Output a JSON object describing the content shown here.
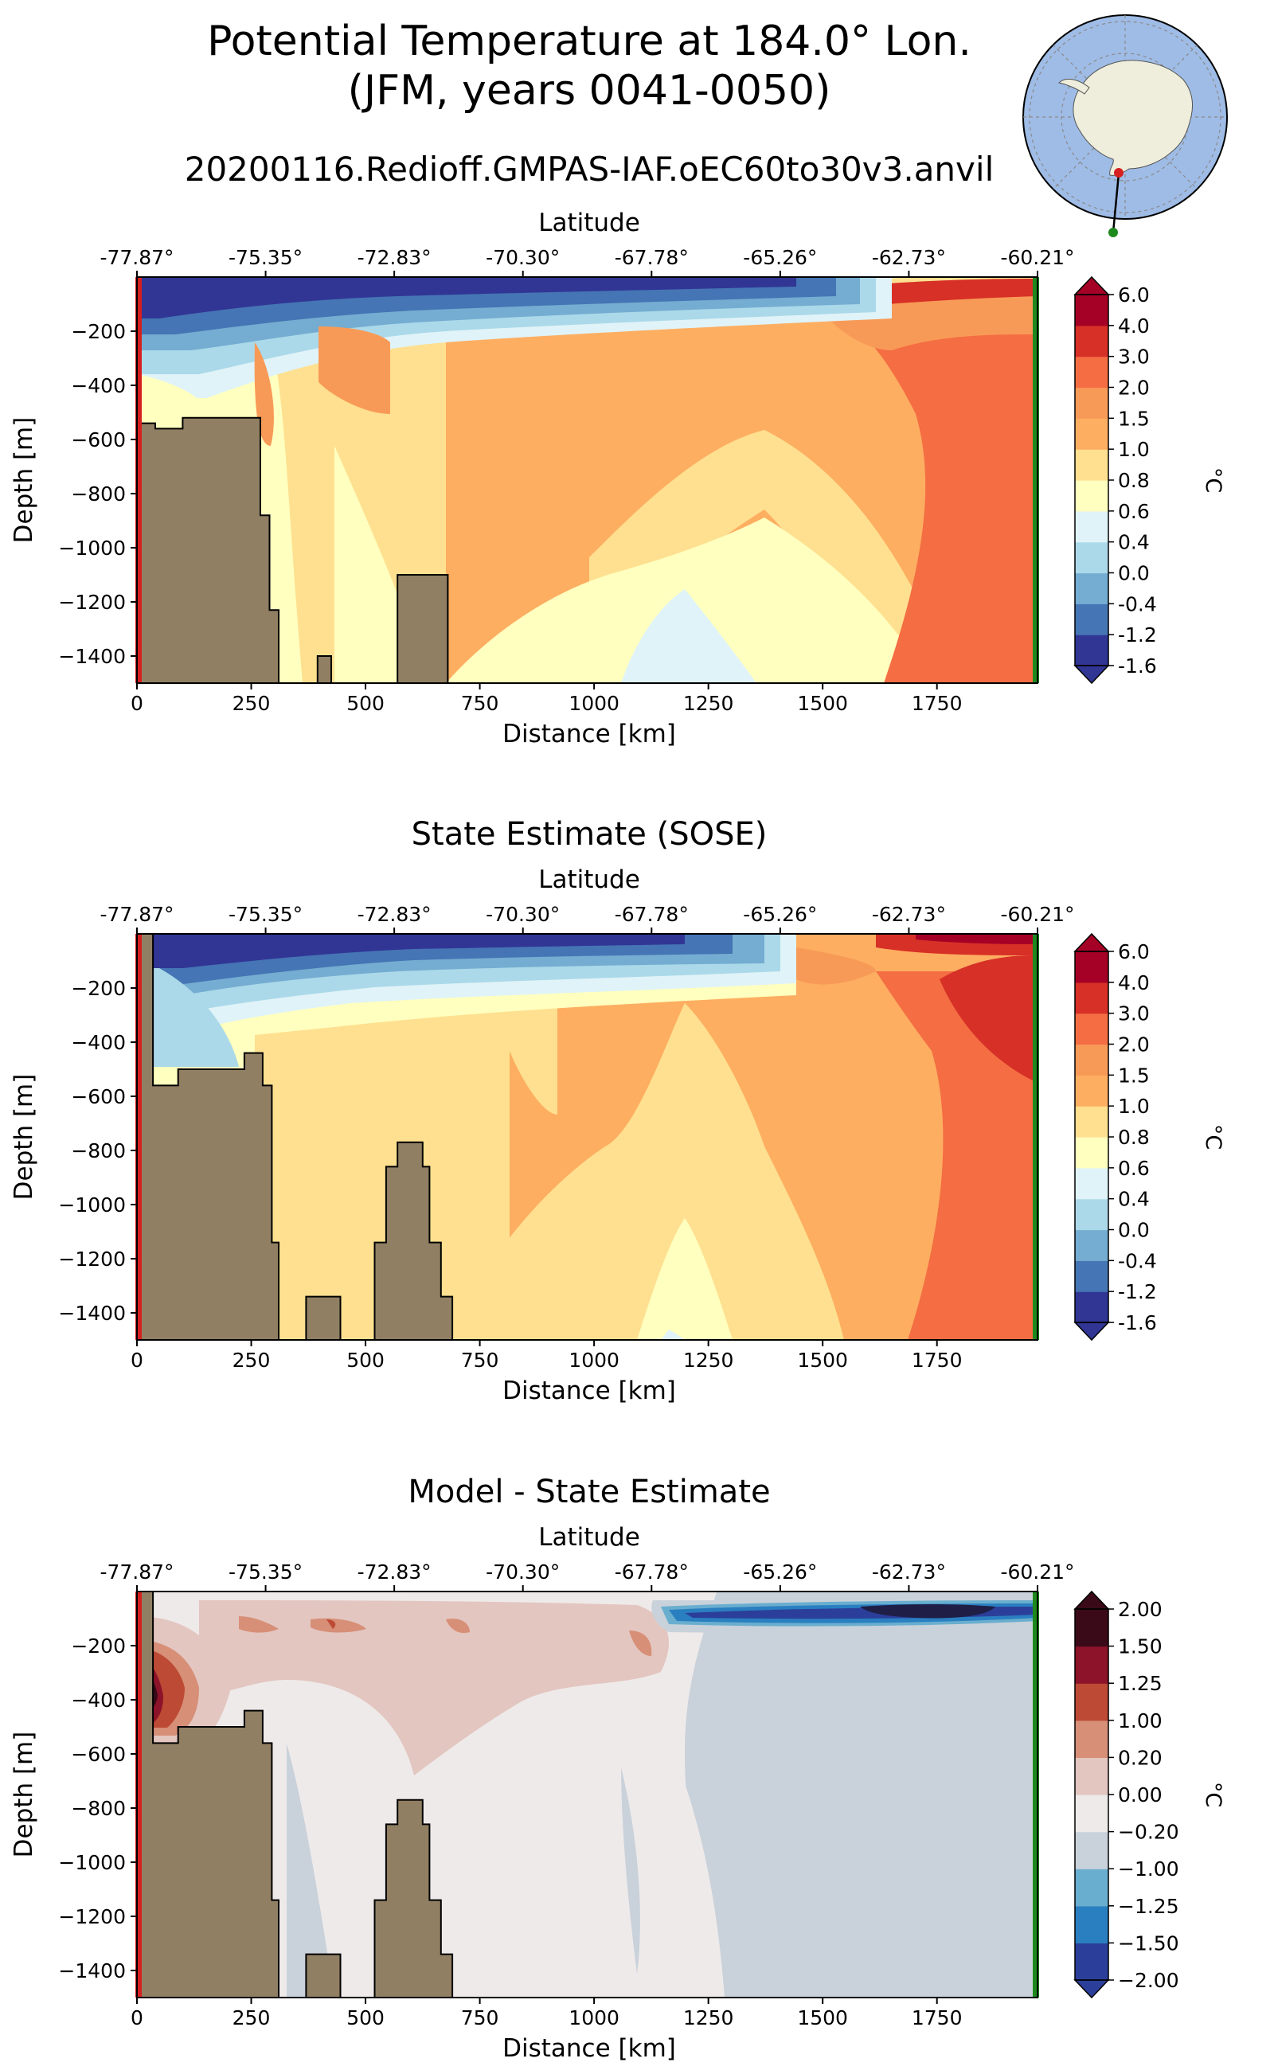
{
  "figure": {
    "title_line1": "Potential Temperature at 184.0° Lon.",
    "title_line2": "(JFM, years 0041-0050)",
    "run_name": "20200116.Redioff.GMPAS-IAF.oEC60to30v3.anvil"
  },
  "colors": {
    "land": "#917f63",
    "ocean_globe": "#9fbce6",
    "antarctica": "#efeedc",
    "start_marker": "#d62020",
    "end_marker": "#1e8a1e"
  },
  "chart_data": [
    {
      "type": "heatmap",
      "title": "",
      "xlabel": "Distance [km]",
      "ylabel": "Depth [m]",
      "top_xlabel": "Latitude",
      "xlim": [
        0,
        1970
      ],
      "ylim": [
        -1500,
        0
      ],
      "x_ticks": [
        0,
        250,
        500,
        750,
        1000,
        1250,
        1500,
        1750
      ],
      "y_ticks": [
        -200,
        -400,
        -600,
        -800,
        -1000,
        -1200,
        -1400
      ],
      "lat_ticks": [
        "-77.87°",
        "-75.35°",
        "-72.83°",
        "-70.30°",
        "-67.78°",
        "-65.26°",
        "-62.73°",
        "-60.21°"
      ],
      "colorbar": {
        "label": "°C",
        "levels": [
          "-1.6",
          "-1.2",
          "-0.4",
          "0.0",
          "0.4",
          "0.6",
          "0.8",
          "1.0",
          "1.5",
          "2.0",
          "3.0",
          "4.0",
          "6.0"
        ],
        "colors": [
          "#313695",
          "#4575b4",
          "#74add1",
          "#abd9e9",
          "#e0f3f8",
          "#ffffbf",
          "#fee090",
          "#fdae61",
          "#f89a57",
          "#f46d43",
          "#d73027",
          "#a50026"
        ]
      },
      "bathymetry": [
        [
          0,
          -540
        ],
        [
          40,
          -540
        ],
        [
          40,
          -560
        ],
        [
          100,
          -560
        ],
        [
          100,
          -520
        ],
        [
          270,
          -520
        ],
        [
          270,
          -880
        ],
        [
          290,
          -880
        ],
        [
          290,
          -1230
        ],
        [
          310,
          -1230
        ],
        [
          310,
          -1500
        ],
        [
          395,
          -1500
        ],
        [
          395,
          -1400
        ],
        [
          425,
          -1400
        ],
        [
          425,
          -1500
        ],
        [
          570,
          -1500
        ],
        [
          570,
          -1100
        ],
        [
          680,
          -1100
        ],
        [
          680,
          -1500
        ]
      ]
    },
    {
      "type": "heatmap",
      "title": "State Estimate (SOSE)",
      "xlabel": "Distance [km]",
      "ylabel": "Depth [m]",
      "top_xlabel": "Latitude",
      "xlim": [
        0,
        1970
      ],
      "ylim": [
        -1500,
        0
      ],
      "x_ticks": [
        0,
        250,
        500,
        750,
        1000,
        1250,
        1500,
        1750
      ],
      "y_ticks": [
        -200,
        -400,
        -600,
        -800,
        -1000,
        -1200,
        -1400
      ],
      "lat_ticks": [
        "-77.87°",
        "-75.35°",
        "-72.83°",
        "-70.30°",
        "-67.78°",
        "-65.26°",
        "-62.73°",
        "-60.21°"
      ],
      "colorbar": {
        "label": "°C",
        "levels": [
          "-1.6",
          "-1.2",
          "-0.4",
          "0.0",
          "0.4",
          "0.6",
          "0.8",
          "1.0",
          "1.5",
          "2.0",
          "3.0",
          "4.0",
          "6.0"
        ],
        "colors": [
          "#313695",
          "#4575b4",
          "#74add1",
          "#abd9e9",
          "#e0f3f8",
          "#ffffbf",
          "#fee090",
          "#fdae61",
          "#f89a57",
          "#f46d43",
          "#d73027",
          "#a50026"
        ]
      },
      "bathymetry": [
        [
          0,
          0
        ],
        [
          35,
          0
        ],
        [
          35,
          -560
        ],
        [
          90,
          -560
        ],
        [
          90,
          -500
        ],
        [
          235,
          -500
        ],
        [
          235,
          -440
        ],
        [
          275,
          -440
        ],
        [
          275,
          -560
        ],
        [
          295,
          -560
        ],
        [
          295,
          -1140
        ],
        [
          310,
          -1140
        ],
        [
          310,
          -1500
        ],
        [
          370,
          -1500
        ],
        [
          370,
          -1340
        ],
        [
          445,
          -1340
        ],
        [
          445,
          -1500
        ],
        [
          520,
          -1500
        ],
        [
          520,
          -1140
        ],
        [
          545,
          -1140
        ],
        [
          545,
          -860
        ],
        [
          570,
          -860
        ],
        [
          570,
          -770
        ],
        [
          625,
          -770
        ],
        [
          625,
          -860
        ],
        [
          640,
          -860
        ],
        [
          640,
          -1140
        ],
        [
          665,
          -1140
        ],
        [
          665,
          -1340
        ],
        [
          690,
          -1340
        ],
        [
          690,
          -1500
        ]
      ]
    },
    {
      "type": "heatmap",
      "title": "Model - State Estimate",
      "xlabel": "Distance [km]",
      "ylabel": "Depth [m]",
      "top_xlabel": "Latitude",
      "xlim": [
        0,
        1970
      ],
      "ylim": [
        -1500,
        0
      ],
      "x_ticks": [
        0,
        250,
        500,
        750,
        1000,
        1250,
        1500,
        1750
      ],
      "y_ticks": [
        -200,
        -400,
        -600,
        -800,
        -1000,
        -1200,
        -1400
      ],
      "lat_ticks": [
        "-77.87°",
        "-75.35°",
        "-72.83°",
        "-70.30°",
        "-67.78°",
        "-65.26°",
        "-62.73°",
        "-60.21°"
      ],
      "colorbar": {
        "label": "°C",
        "levels": [
          "−2.00",
          "−1.50",
          "−1.25",
          "−1.00",
          "−0.20",
          "0.00",
          "0.20",
          "1.00",
          "1.25",
          "1.50",
          "2.00"
        ],
        "colors": [
          "#2b3f9a",
          "#2a7fc0",
          "#6aaecf",
          "#c9d2da",
          "#efeaea",
          "#e3c6c0",
          "#d78f77",
          "#bd4a34",
          "#8c1329",
          "#3b0a18"
        ]
      },
      "bathymetry": [
        [
          0,
          0
        ],
        [
          35,
          0
        ],
        [
          35,
          -560
        ],
        [
          90,
          -560
        ],
        [
          90,
          -500
        ],
        [
          235,
          -500
        ],
        [
          235,
          -440
        ],
        [
          275,
          -440
        ],
        [
          275,
          -560
        ],
        [
          295,
          -560
        ],
        [
          295,
          -1140
        ],
        [
          310,
          -1140
        ],
        [
          310,
          -1500
        ],
        [
          370,
          -1500
        ],
        [
          370,
          -1340
        ],
        [
          445,
          -1340
        ],
        [
          445,
          -1500
        ],
        [
          520,
          -1500
        ],
        [
          520,
          -1140
        ],
        [
          545,
          -1140
        ],
        [
          545,
          -860
        ],
        [
          570,
          -860
        ],
        [
          570,
          -770
        ],
        [
          625,
          -770
        ],
        [
          625,
          -860
        ],
        [
          640,
          -860
        ],
        [
          640,
          -1140
        ],
        [
          665,
          -1140
        ],
        [
          665,
          -1340
        ],
        [
          690,
          -1340
        ],
        [
          690,
          -1500
        ]
      ]
    }
  ]
}
